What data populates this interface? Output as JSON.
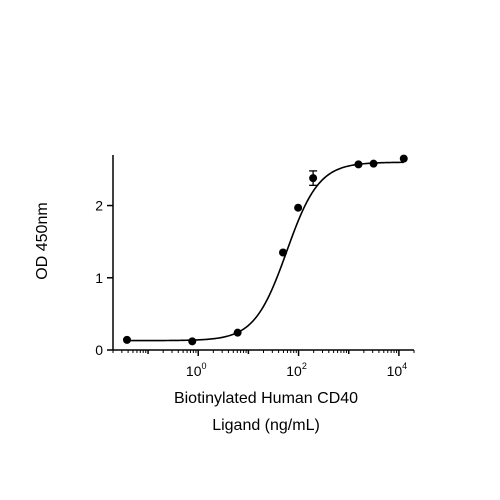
{
  "chart_data": {
    "type": "scatter",
    "xscale": "log",
    "xlim": [
      0.02,
      20000
    ],
    "ylim": [
      0,
      2.7
    ],
    "xlabel_lines": [
      "Biotinylated Human CD40",
      "Ligand (ng/mL)"
    ],
    "ylabel": "OD 450nm",
    "x_ticks": [
      {
        "base": "10",
        "exp": "0",
        "value": 1
      },
      {
        "base": "10",
        "exp": "2",
        "value": 100
      },
      {
        "base": "10",
        "exp": "4",
        "value": 10000
      }
    ],
    "y_ticks": [
      {
        "label": "0",
        "value": 0
      },
      {
        "label": "1",
        "value": 1
      },
      {
        "label": "2",
        "value": 2
      }
    ],
    "series": [
      {
        "x": [
          0.038,
          0.76,
          6.1,
          49,
          98,
          195,
          1563,
          3125,
          12500
        ],
        "y": [
          0.14,
          0.12,
          0.24,
          1.35,
          1.97,
          2.38,
          2.57,
          2.58,
          2.65
        ],
        "error": [
          0,
          0,
          0,
          0,
          0,
          0.1,
          0,
          0,
          0
        ]
      }
    ],
    "fit": {
      "model": "4PL",
      "bottom": 0.13,
      "top": 2.6,
      "ec50": 58,
      "hill": 1.35
    },
    "colors": {
      "points": "#000000",
      "curve": "#000000",
      "axes": "#000000"
    }
  }
}
